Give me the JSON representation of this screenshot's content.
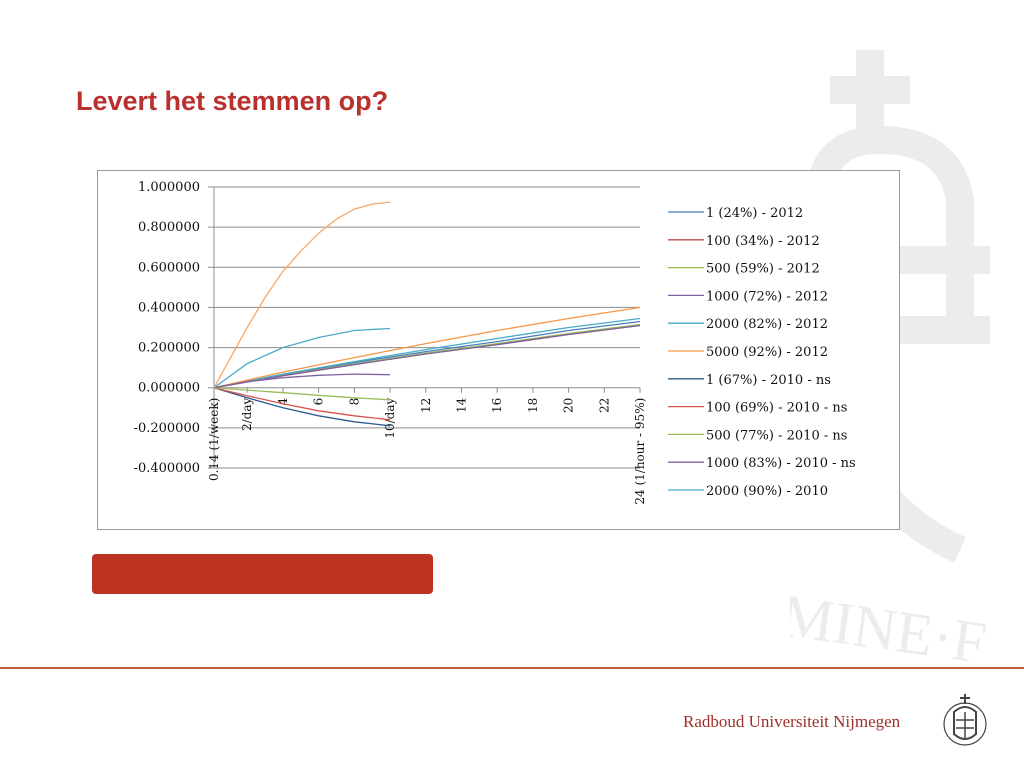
{
  "slide": {
    "title": "Levert het stemmen op?",
    "footer": "Radboud Universiteit Nijmegen",
    "accent_color": "#b8312f",
    "bar_color": "#bd3120"
  },
  "chart_data": {
    "type": "line",
    "title": "",
    "xlabel": "",
    "ylabel": "",
    "ylim": [
      -0.4,
      1.0
    ],
    "xlim": [
      0.14,
      24
    ],
    "grid": true,
    "legend": "right",
    "yticks": [
      1.0,
      0.8,
      0.6,
      0.4,
      0.2,
      0.0,
      -0.2,
      -0.4
    ],
    "ytick_labels": [
      "1.000000",
      "0.800000",
      "0.600000",
      "0.400000",
      "0.200000",
      "0.000000",
      "-0.200000",
      "-0.400000"
    ],
    "xticks": [
      0.14,
      2,
      4,
      6,
      8,
      10,
      12,
      14,
      16,
      18,
      20,
      22,
      24
    ],
    "xtick_labels": [
      "0.14 (1/week)",
      "2/day",
      "4",
      "6",
      "8",
      "10/day",
      "12",
      "14",
      "16",
      "18",
      "20",
      "22",
      "24 (1/hour - 95%)"
    ],
    "series": [
      {
        "name": "1 (24%) - 2012",
        "color": "#4a7ebb",
        "x": [
          0.14,
          4,
          8,
          12,
          16,
          20,
          24
        ],
        "y": [
          0,
          0.065,
          0.125,
          0.18,
          0.23,
          0.285,
          0.33
        ]
      },
      {
        "name": "100 (34%) - 2012",
        "color": "#be4b48",
        "x": [
          0.14,
          4,
          8,
          12,
          16,
          20,
          24
        ],
        "y": [
          0,
          0.06,
          0.115,
          0.17,
          0.215,
          0.265,
          0.31
        ]
      },
      {
        "name": "500 (59%) - 2012",
        "color": "#98b954",
        "x": [
          0.14,
          4,
          8,
          12,
          16,
          20,
          24
        ],
        "y": [
          0,
          0.062,
          0.118,
          0.172,
          0.22,
          0.27,
          0.315
        ]
      },
      {
        "name": "1000 (72%) - 2012",
        "color": "#7d60a0",
        "x": [
          0.14,
          4,
          8,
          12,
          16,
          20,
          24
        ],
        "y": [
          0,
          0.06,
          0.115,
          0.168,
          0.215,
          0.265,
          0.31
        ]
      },
      {
        "name": "2000 (82%) - 2012",
        "color": "#46aac5",
        "x": [
          0.14,
          4,
          8,
          12,
          16,
          20,
          24
        ],
        "y": [
          0,
          0.068,
          0.13,
          0.19,
          0.245,
          0.3,
          0.345
        ]
      },
      {
        "name": "5000 (92%) - 2012",
        "color": "#f79646",
        "x": [
          0.14,
          4,
          8,
          12,
          16,
          20,
          24
        ],
        "y": [
          0,
          0.078,
          0.15,
          0.22,
          0.285,
          0.345,
          0.4
        ]
      },
      {
        "name": "1 (67%) - 2010 - ns",
        "color": "#2c5d8e",
        "x": [
          0.14,
          2,
          4,
          6,
          8,
          10
        ],
        "y": [
          0,
          -0.05,
          -0.1,
          -0.14,
          -0.17,
          -0.19
        ]
      },
      {
        "name": "100 (69%) - 2010 - ns",
        "color": "#d9534f",
        "x": [
          0.14,
          2,
          4,
          6,
          8,
          10
        ],
        "y": [
          0,
          -0.04,
          -0.08,
          -0.115,
          -0.14,
          -0.16
        ]
      },
      {
        "name": "500 (77%) - 2010 - ns",
        "color": "#9bbb59",
        "x": [
          0.14,
          2,
          4,
          6,
          8,
          10
        ],
        "y": [
          0,
          -0.012,
          -0.025,
          -0.038,
          -0.05,
          -0.06
        ]
      },
      {
        "name": "1000 (83%) - 2010 - ns",
        "color": "#8064a2",
        "x": [
          0.14,
          2,
          4,
          6,
          8,
          10
        ],
        "y": [
          0,
          0.03,
          0.05,
          0.062,
          0.068,
          0.065
        ]
      },
      {
        "name": "2000 (90%) - 2010",
        "color": "#4bacc6",
        "x": [
          0.14,
          2,
          4,
          6,
          8,
          10
        ],
        "y": [
          0,
          0.12,
          0.2,
          0.25,
          0.285,
          0.295
        ]
      },
      {
        "name": "",
        "color": "#f9a868",
        "x": [
          0.14,
          2,
          3,
          4,
          5,
          6,
          7,
          8,
          9,
          10
        ],
        "y": [
          0,
          0.3,
          0.45,
          0.58,
          0.68,
          0.77,
          0.84,
          0.89,
          0.915,
          0.925
        ]
      }
    ]
  }
}
